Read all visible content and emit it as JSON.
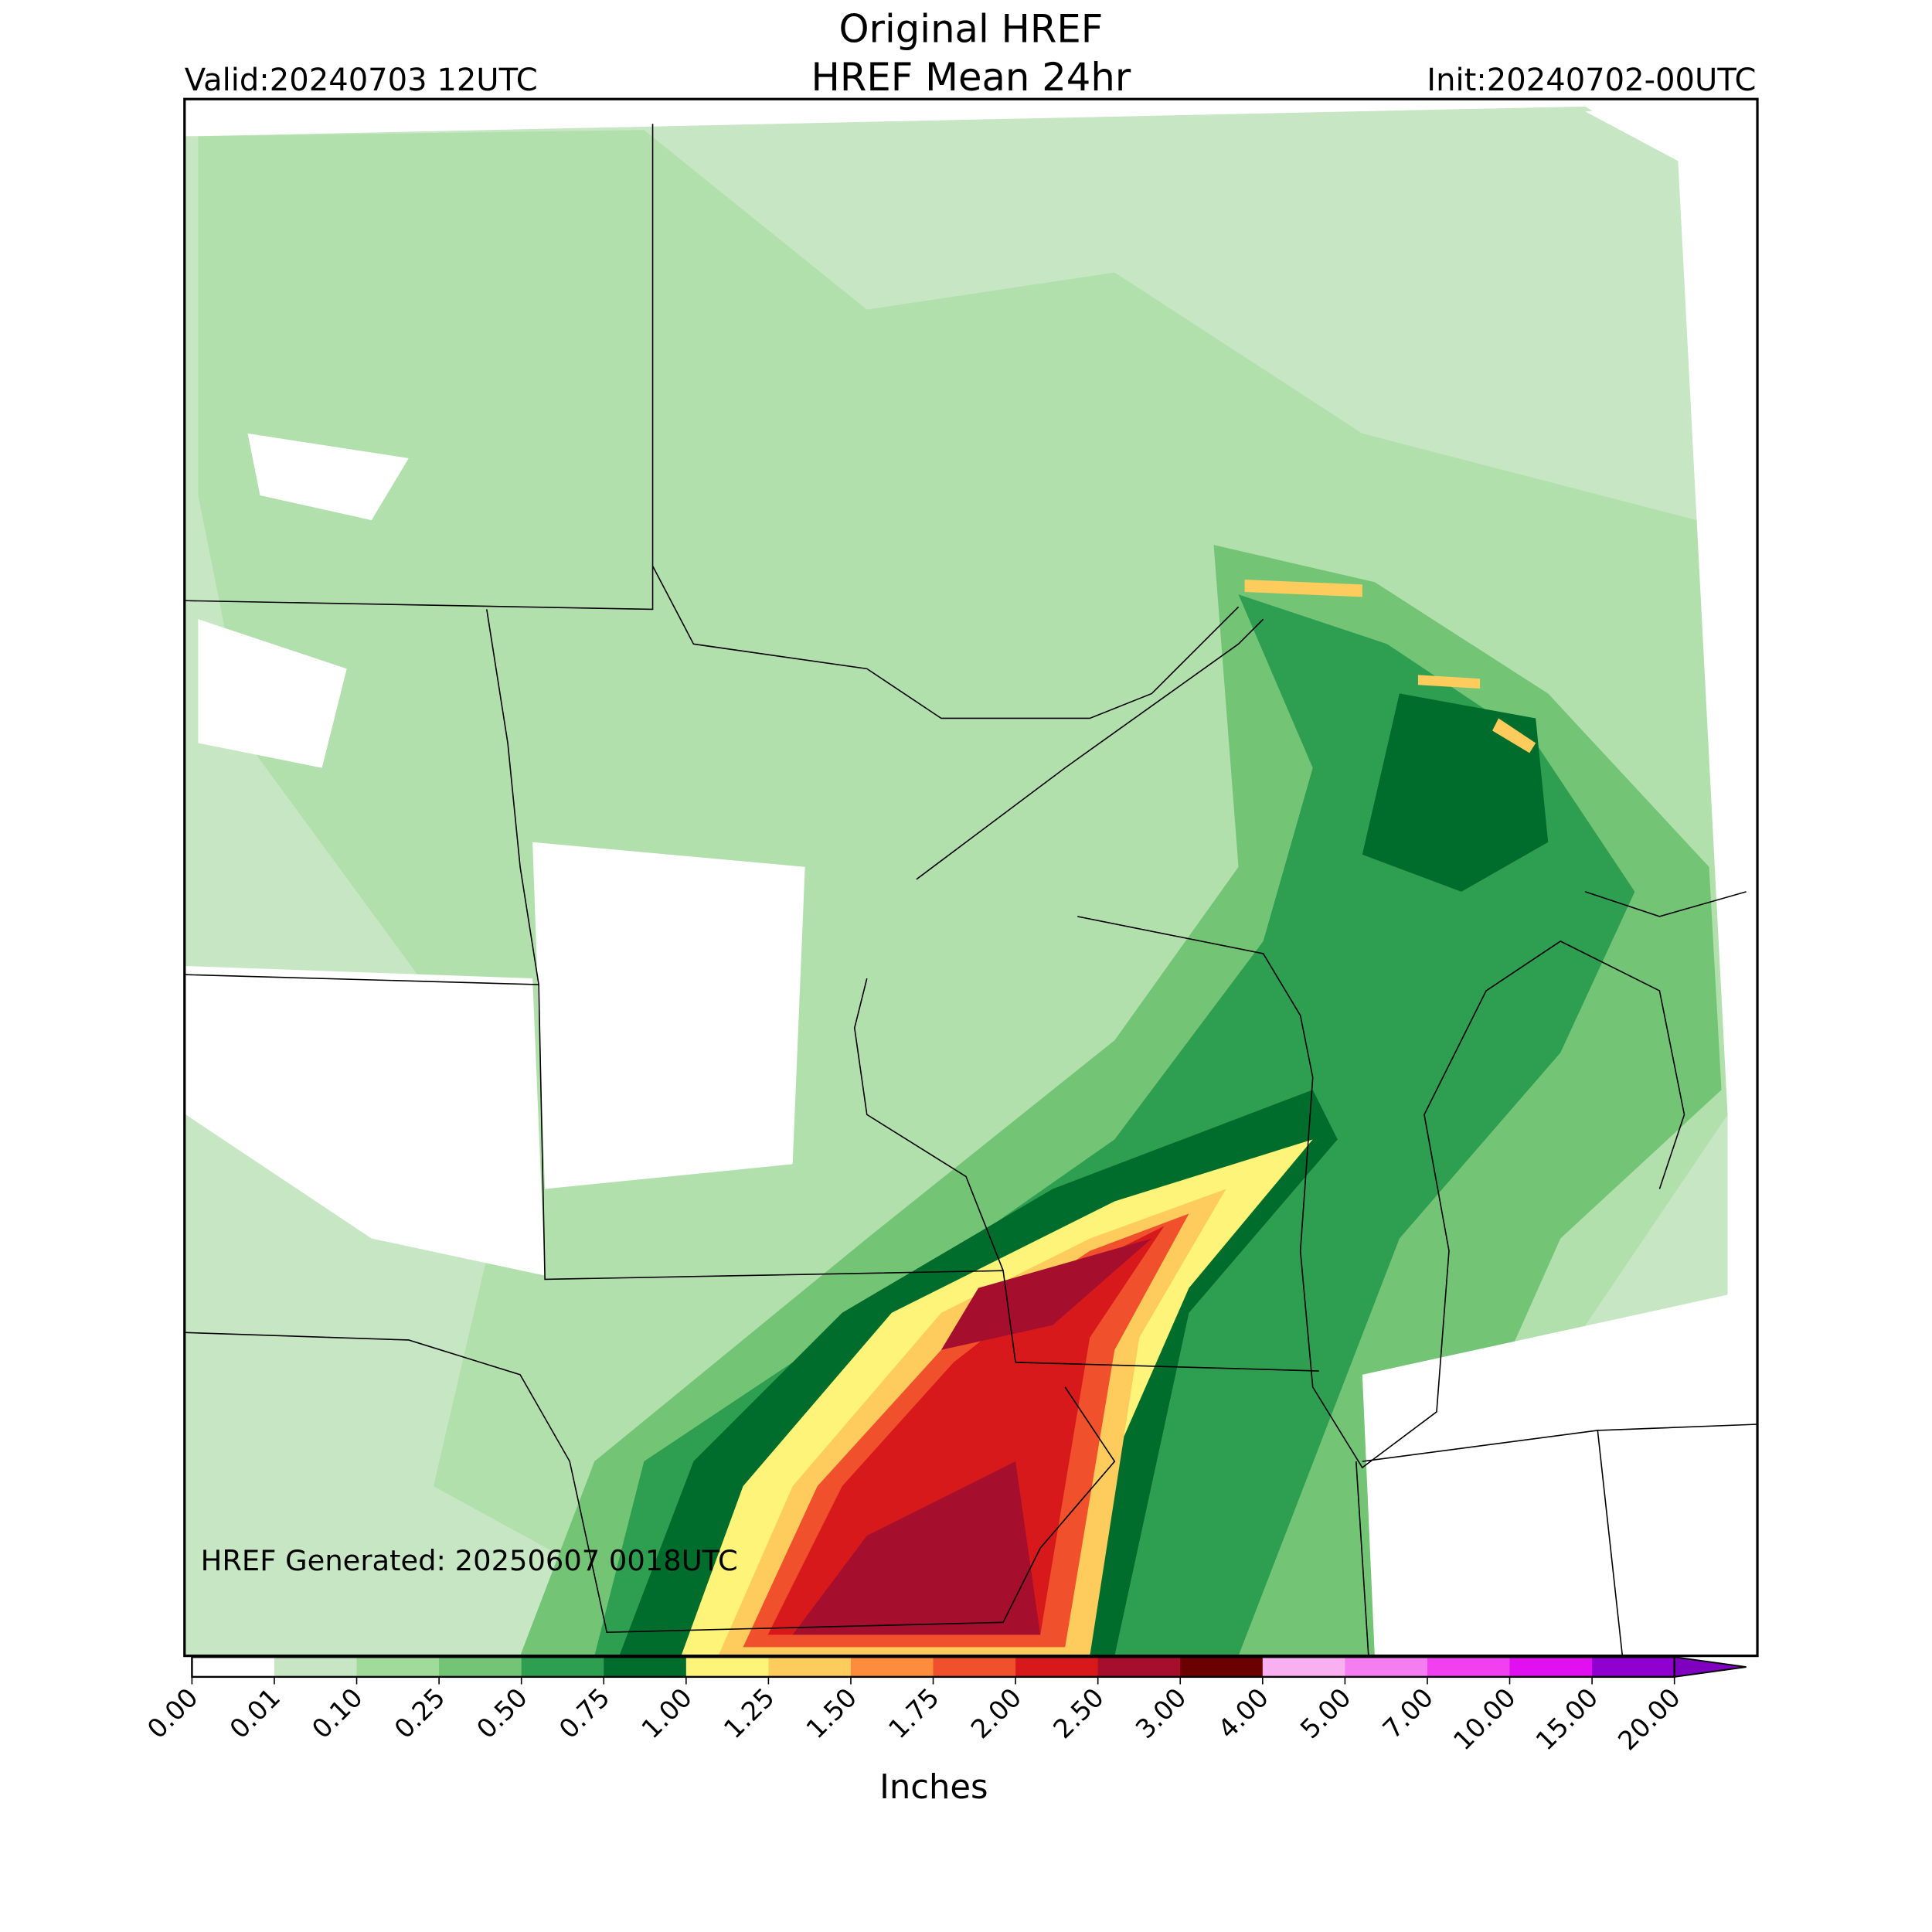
{
  "header": {
    "title": "Original HREF",
    "subtitle": "HREF Mean 24hr",
    "valid": "Valid:20240703 12UTC",
    "init": "Init:20240702-00UTC"
  },
  "map": {
    "annotation": "HREF Generated: 20250607 0018UTC"
  },
  "colorbar": {
    "label": "Inches",
    "ticks": [
      "0.00",
      "0.01",
      "0.10",
      "0.25",
      "0.50",
      "0.75",
      "1.00",
      "1.25",
      "1.50",
      "1.75",
      "2.00",
      "2.50",
      "3.00",
      "4.00",
      "5.00",
      "7.00",
      "10.00",
      "15.00",
      "20.00"
    ],
    "colors": [
      "#ffffff",
      "#c7e6c4",
      "#a1db9a",
      "#74c476",
      "#2e9e50",
      "#006d2c",
      "#fff47a",
      "#fecc5c",
      "#fd8d3c",
      "#f0502c",
      "#d7191c",
      "#a50f2d",
      "#6b0000",
      "#f8b0f0",
      "#f47ef0",
      "#f040f0",
      "#e010f0",
      "#9000d0"
    ],
    "extend_color": "#8000c0"
  }
}
